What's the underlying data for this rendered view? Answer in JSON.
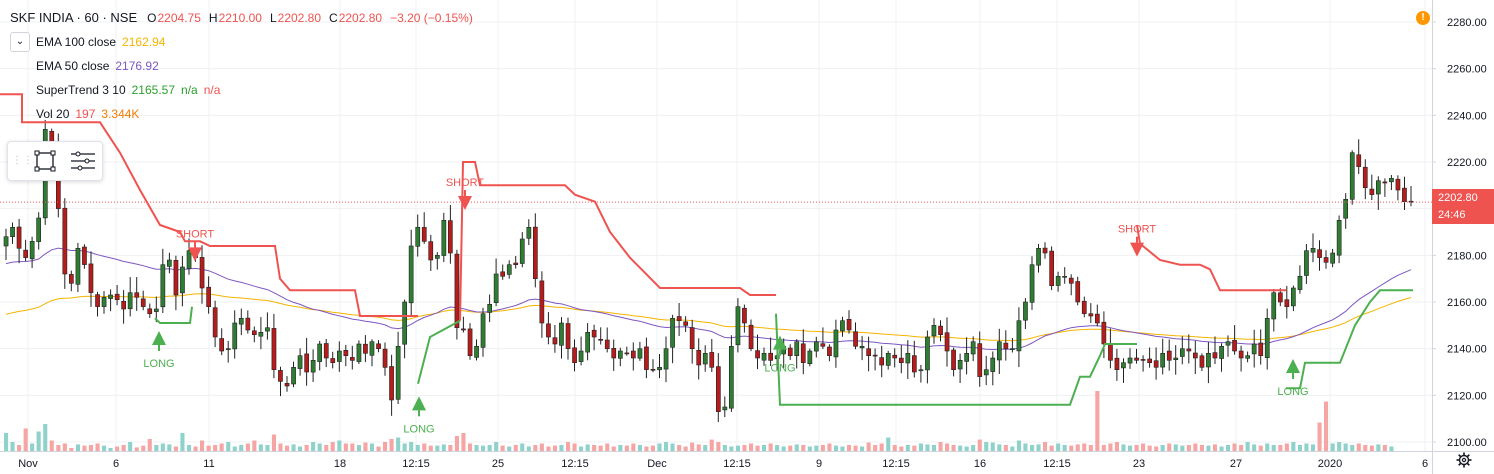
{
  "header": {
    "symbol_title": "SKF INDIA · 60 · NSE",
    "open_key": "O",
    "open": "2204.75",
    "high_key": "H",
    "high": "2210.00",
    "low_key": "L",
    "low": "2202.80",
    "close_key": "C",
    "close": "2202.80",
    "change": "−3.20 (−0.15%)",
    "change_color": "#ef5350"
  },
  "indicators": [
    {
      "name": "EMA 100 close",
      "value": "2162.94",
      "color": "#f5b400"
    },
    {
      "name": "EMA 50 close",
      "value": "2176.92",
      "color": "#7e57c2"
    },
    {
      "name": "SuperTrend 3 10",
      "value": "2165.57",
      "extra1": "n/a",
      "extra2": "n/a",
      "color": "#2ca02c",
      "color2": "#ef5350"
    },
    {
      "name": "Vol 20",
      "value": "197",
      "extra1": "3.344K",
      "color": "#ef5350",
      "color2": "#f57c00"
    }
  ],
  "price_axis": {
    "ticks": [
      "2280.00",
      "2260.00",
      "2240.00",
      "2220.00",
      "2200.00",
      "2180.00",
      "2160.00",
      "2140.00",
      "2120.00",
      "2100.00"
    ],
    "last_price": "2202.80",
    "countdown": "24:46",
    "last_price_color": "#ef5350"
  },
  "time_axis": {
    "ticks": [
      "Nov",
      "6",
      "11",
      "18",
      "12:15",
      "25",
      "12:15",
      "Dec",
      "12:15",
      "9",
      "12:15",
      "16",
      "12:15",
      "23",
      "27",
      "2020",
      "6"
    ]
  },
  "signals": {
    "long_label": "LONG",
    "short_label": "SHORT"
  },
  "colors": {
    "up": "#26a69a",
    "down": "#ef5350",
    "candle_up_fill": "#ffffff",
    "candle_down_fill": "#ef5350",
    "supertrend_up": "#4caf50",
    "supertrend_down": "#ef5350",
    "ema100": "#f5b400",
    "ema50": "#7e57c2",
    "volume_up": "#8fd1cb",
    "volume_down": "#f5a6a4"
  },
  "chart_data": {
    "type": "candlestick",
    "symbol": "SKF INDIA",
    "interval": "60",
    "exchange": "NSE",
    "ylim": [
      2095,
      2290
    ],
    "grid": true,
    "x_labels": [
      "Nov",
      "6",
      "11",
      "18",
      "12:15",
      "25",
      "12:15",
      "Dec",
      "12:15",
      "9",
      "12:15",
      "16",
      "12:15",
      "23",
      "27",
      "2020",
      "6"
    ],
    "close_series": [
      2188,
      2192,
      2183,
      2179,
      2186,
      2196,
      2234,
      2226,
      2200,
      2172,
      2168,
      2183,
      2176,
      2164,
      2158,
      2162,
      2163,
      2161,
      2157,
      2164,
      2162,
      2158,
      2155,
      2157,
      2176,
      2178,
      2163,
      2175,
      2182,
      2179,
      2166,
      2158,
      2145,
      2139,
      2140,
      2151,
      2153,
      2148,
      2146,
      2147,
      2149,
      2131,
      2126,
      2124,
      2132,
      2137,
      2130,
      2135,
      2142,
      2136,
      2134,
      2139,
      2137,
      2135,
      2142,
      2138,
      2143,
      2140,
      2132,
      2118,
      2141,
      2160,
      2184,
      2192,
      2186,
      2178,
      2180,
      2195,
      2181,
      2149,
      2148,
      2137,
      2141,
      2155,
      2159,
      2172,
      2171,
      2176,
      2176,
      2187,
      2192,
      2170,
      2151,
      2145,
      2142,
      2151,
      2140,
      2134,
      2139,
      2147,
      2145,
      2144,
      2140,
      2136,
      2139,
      2138,
      2136,
      2140,
      2131,
      2131,
      2132,
      2140,
      2153,
      2152,
      2150,
      2140,
      2133,
      2138,
      2132,
      2113,
      2115,
      2141,
      2158,
      2151,
      2140,
      2136,
      2138,
      2135,
      2137,
      2141,
      2137,
      2143,
      2134,
      2139,
      2143,
      2141,
      2137,
      2148,
      2152,
      2148,
      2141,
      2141,
      2137,
      2137,
      2133,
      2138,
      2136,
      2134,
      2138,
      2130,
      2131,
      2145,
      2150,
      2146,
      2139,
      2131,
      2135,
      2138,
      2143,
      2128,
      2131,
      2136,
      2143,
      2140,
      2140,
      2152,
      2160,
      2176,
      2183,
      2181,
      2167,
      2171,
      2171,
      2168,
      2160,
      2155,
      2154,
      2151,
      2142,
      2135,
      2131,
      2134,
      2136,
      2135,
      2135,
      2134,
      2132,
      2138,
      2135,
      2136,
      2140,
      2139,
      2136,
      2132,
      2138,
      2136,
      2141,
      2143,
      2139,
      2136,
      2137,
      2142,
      2137,
      2153,
      2164,
      2160,
      2158,
      2166,
      2171,
      2182,
      2183,
      2179,
      2177,
      2181,
      2195,
      2204,
      2224,
      2218,
      2209,
      2206,
      2212,
      2211,
      2213,
      2208,
      2203,
      2203
    ],
    "volume_series": [
      60,
      30,
      20,
      75,
      25,
      65,
      90,
      35,
      20,
      25,
      10,
      22,
      18,
      20,
      25,
      18,
      10,
      15,
      20,
      30,
      12,
      18,
      40,
      20,
      25,
      22,
      15,
      60,
      20,
      15,
      35,
      18,
      20,
      25,
      30,
      15,
      20,
      25,
      35,
      22,
      20,
      55,
      25,
      18,
      22,
      15,
      20,
      30,
      25,
      20,
      30,
      35,
      25,
      25,
      20,
      28,
      25,
      15,
      30,
      40,
      45,
      25,
      30,
      20,
      25,
      18,
      18,
      22,
      20,
      50,
      60,
      25,
      20,
      18,
      20,
      30,
      18,
      15,
      20,
      25,
      15,
      20,
      25,
      15,
      18,
      20,
      30,
      25,
      15,
      22,
      20,
      18,
      25,
      15,
      20,
      18,
      25,
      20,
      15,
      18,
      25,
      30,
      25,
      20,
      15,
      28,
      22,
      20,
      38,
      30,
      20,
      15,
      18,
      20,
      25,
      18,
      20,
      25,
      20,
      15,
      18,
      22,
      20,
      15,
      18,
      20,
      25,
      18,
      15,
      20,
      18,
      15,
      28,
      20,
      25,
      45,
      20,
      15,
      20,
      18,
      25,
      22,
      20,
      30,
      25,
      20,
      18,
      15,
      20,
      38,
      30,
      28,
      22,
      20,
      15,
      35,
      25,
      20,
      22,
      30,
      18,
      25,
      20,
      18,
      22,
      25,
      20,
      200,
      20,
      25,
      30,
      22,
      18,
      20,
      25,
      18,
      15,
      20,
      25,
      22,
      18,
      20,
      25,
      20,
      18,
      22,
      15,
      20,
      25,
      20,
      30,
      22,
      18,
      25,
      20,
      20,
      25,
      30,
      20,
      25,
      22,
      95,
      165,
      25,
      30,
      25,
      20,
      25,
      20,
      18,
      22,
      20,
      15
    ]
  }
}
